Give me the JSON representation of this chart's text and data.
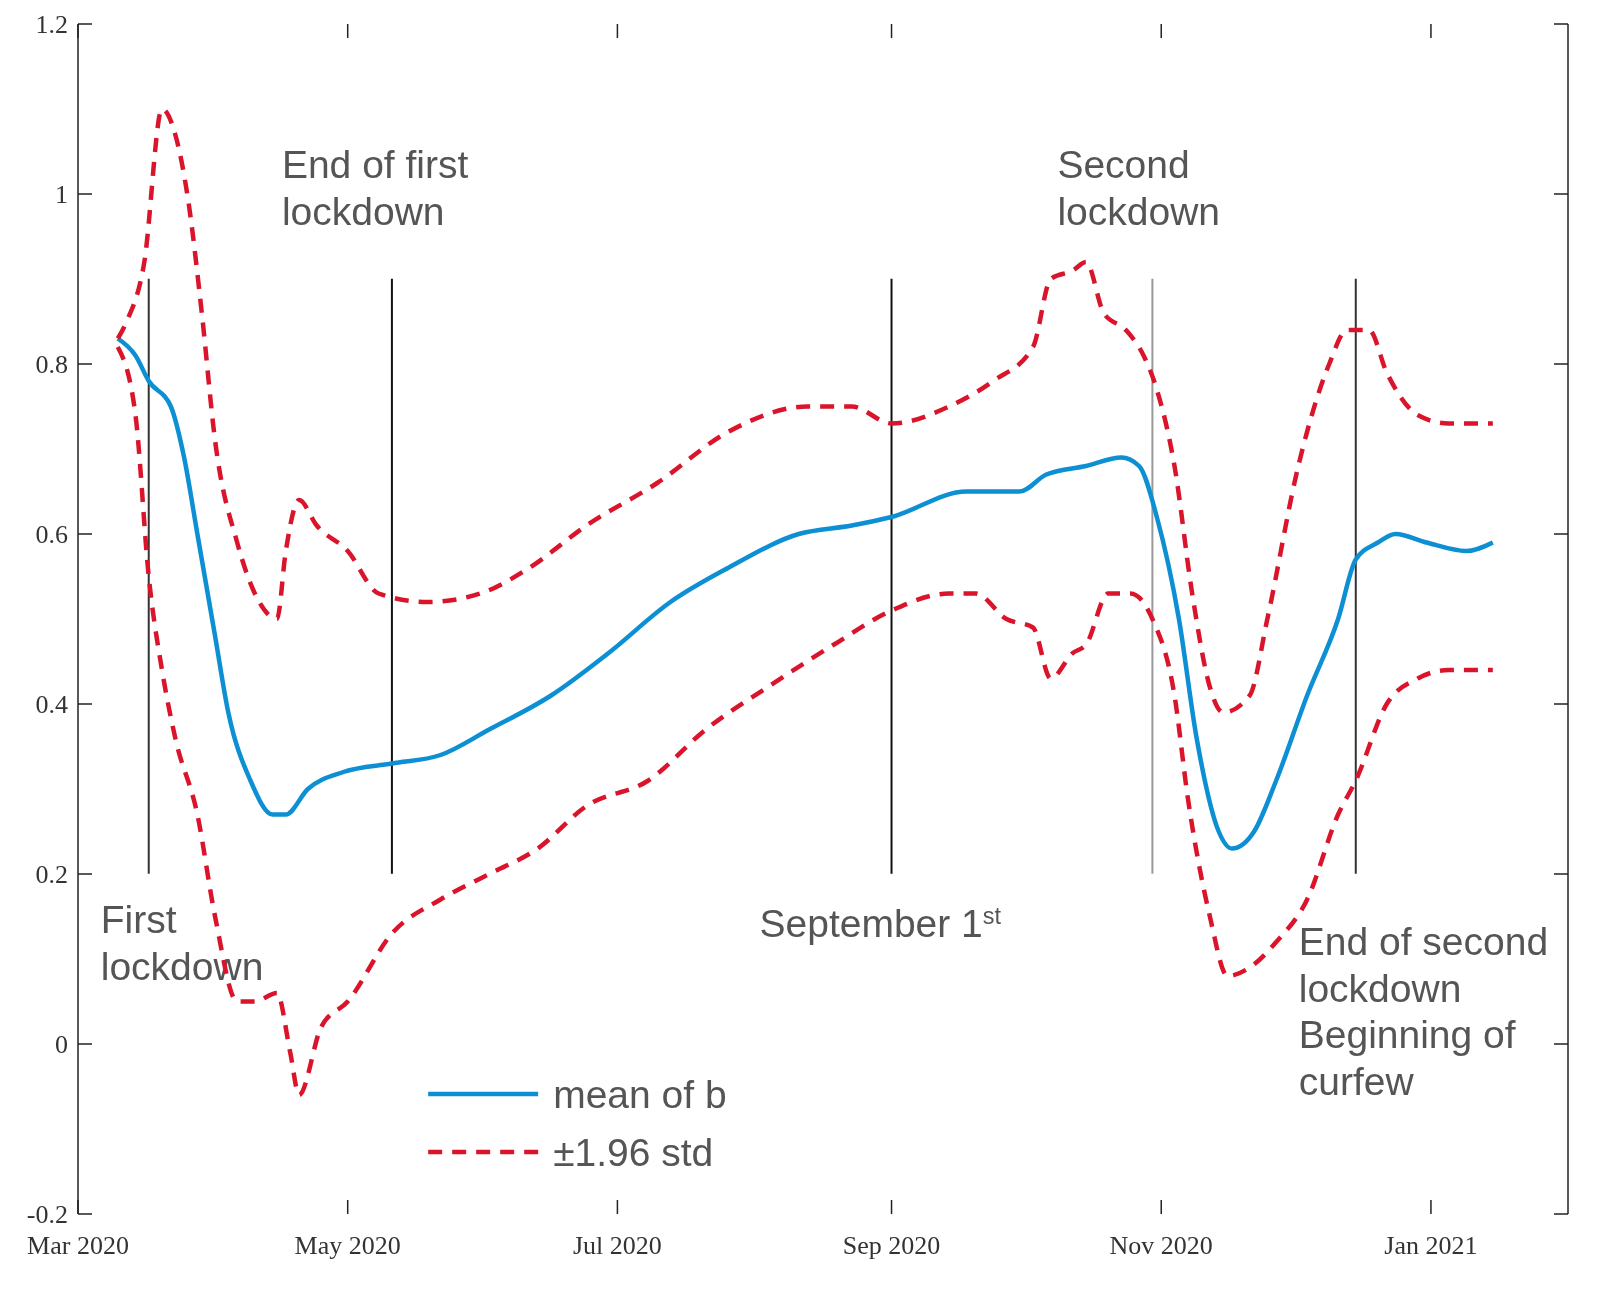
{
  "chart_data": {
    "type": "line",
    "xlim": [
      "2020-03-01",
      "2021-02-01"
    ],
    "xticks": [
      {
        "value": "2020-03-01",
        "label": "Mar 2020"
      },
      {
        "value": "2020-05-01",
        "label": "May 2020"
      },
      {
        "value": "2020-07-01",
        "label": "Jul 2020"
      },
      {
        "value": "2020-09-01",
        "label": "Sep 2020"
      },
      {
        "value": "2020-11-01",
        "label": "Nov 2020"
      },
      {
        "value": "2021-01-01",
        "label": "Jan 2021"
      }
    ],
    "ylim": [
      -0.2,
      1.2
    ],
    "yticks": [
      -0.2,
      0,
      0.2,
      0.4,
      0.6,
      0.8,
      1,
      1.2
    ],
    "grid": false,
    "legend": "bottom",
    "series": [
      {
        "name": "mean of b",
        "color": "#0d8fd4",
        "line_style": "solid",
        "x": [
          "2020-03-10",
          "2020-03-14",
          "2020-03-17",
          "2020-03-22",
          "2020-03-25",
          "2020-03-28",
          "2020-04-01",
          "2020-04-04",
          "2020-04-09",
          "2020-04-14",
          "2020-04-17",
          "2020-04-22",
          "2020-04-30",
          "2020-05-11",
          "2020-05-22",
          "2020-06-02",
          "2020-06-16",
          "2020-06-29",
          "2020-07-13",
          "2020-07-26",
          "2020-08-11",
          "2020-08-23",
          "2020-09-01",
          "2020-09-18",
          "2020-09-30",
          "2020-10-06",
          "2020-10-15",
          "2020-10-23",
          "2020-10-27",
          "2020-10-31",
          "2020-11-05",
          "2020-11-09",
          "2020-11-14",
          "2020-11-17",
          "2020-11-22",
          "2020-11-27",
          "2020-12-04",
          "2020-12-11",
          "2020-12-15",
          "2020-12-20",
          "2020-12-24",
          "2020-12-31",
          "2021-01-09",
          "2021-01-15"
        ],
        "values": [
          0.83,
          0.81,
          0.78,
          0.75,
          0.69,
          0.6,
          0.48,
          0.39,
          0.31,
          0.27,
          0.27,
          0.3,
          0.32,
          0.33,
          0.34,
          0.37,
          0.41,
          0.46,
          0.52,
          0.56,
          0.6,
          0.61,
          0.62,
          0.65,
          0.65,
          0.67,
          0.68,
          0.69,
          0.68,
          0.62,
          0.5,
          0.36,
          0.25,
          0.23,
          0.25,
          0.31,
          0.41,
          0.5,
          0.57,
          0.59,
          0.6,
          0.59,
          0.58,
          0.59
        ]
      },
      {
        "name": "±1.96 std",
        "color": "#d9142b",
        "line_style": "dashed",
        "x": [
          "2020-03-10",
          "2020-03-12",
          "2020-03-16",
          "2020-03-20",
          "2020-03-23",
          "2020-03-26",
          "2020-03-29",
          "2020-04-01",
          "2020-04-06",
          "2020-04-11",
          "2020-04-15",
          "2020-04-17",
          "2020-04-20",
          "2020-04-24",
          "2020-05-01",
          "2020-05-08",
          "2020-05-19",
          "2020-05-31",
          "2020-06-11",
          "2020-06-24",
          "2020-07-10",
          "2020-07-26",
          "2020-08-13",
          "2020-08-23",
          "2020-09-01",
          "2020-09-14",
          "2020-09-24",
          "2020-10-03",
          "2020-10-07",
          "2020-10-12",
          "2020-10-15",
          "2020-10-19",
          "2020-10-24",
          "2020-10-28",
          "2020-10-31",
          "2020-11-04",
          "2020-11-08",
          "2020-11-12",
          "2020-11-15",
          "2020-11-21",
          "2020-11-25",
          "2020-12-02",
          "2020-12-09",
          "2020-12-13",
          "2020-12-18",
          "2020-12-22",
          "2020-12-29",
          "2021-01-05",
          "2021-01-15"
        ],
        "values": [
          0.83,
          0.85,
          0.92,
          1.1,
          1.07,
          0.99,
          0.86,
          0.71,
          0.59,
          0.52,
          0.5,
          0.58,
          0.64,
          0.61,
          0.58,
          0.53,
          0.52,
          0.53,
          0.56,
          0.61,
          0.66,
          0.72,
          0.75,
          0.75,
          0.73,
          0.75,
          0.78,
          0.82,
          0.9,
          0.91,
          0.92,
          0.86,
          0.84,
          0.81,
          0.77,
          0.68,
          0.53,
          0.42,
          0.39,
          0.41,
          0.5,
          0.68,
          0.8,
          0.84,
          0.84,
          0.79,
          0.74,
          0.73,
          0.73
        ]
      },
      {
        "color": "#d9142b",
        "line_style": "dashed",
        "x": [
          "2020-03-10",
          "2020-03-14",
          "2020-03-17",
          "2020-03-20",
          "2020-03-23",
          "2020-03-28",
          "2020-04-01",
          "2020-04-06",
          "2020-04-10",
          "2020-04-15",
          "2020-04-18",
          "2020-04-20",
          "2020-04-25",
          "2020-05-01",
          "2020-05-11",
          "2020-05-22",
          "2020-06-02",
          "2020-06-13",
          "2020-06-24",
          "2020-07-08",
          "2020-07-21",
          "2020-08-04",
          "2020-08-19",
          "2020-09-01",
          "2020-09-14",
          "2020-09-20",
          "2020-09-27",
          "2020-10-03",
          "2020-10-07",
          "2020-10-12",
          "2020-10-15",
          "2020-10-20",
          "2020-10-25",
          "2020-10-30",
          "2020-11-04",
          "2020-11-07",
          "2020-11-12",
          "2020-11-16",
          "2020-11-21",
          "2020-11-27",
          "2020-12-04",
          "2020-12-11",
          "2020-12-15",
          "2020-12-22",
          "2020-12-29",
          "2021-01-05",
          "2021-01-15"
        ],
        "values": [
          0.82,
          0.74,
          0.55,
          0.44,
          0.36,
          0.27,
          0.15,
          0.05,
          0.05,
          0.06,
          -0.01,
          -0.06,
          0.02,
          0.05,
          0.13,
          0.17,
          0.2,
          0.23,
          0.28,
          0.31,
          0.37,
          0.42,
          0.47,
          0.51,
          0.53,
          0.53,
          0.5,
          0.49,
          0.43,
          0.46,
          0.47,
          0.53,
          0.53,
          0.5,
          0.41,
          0.29,
          0.15,
          0.08,
          0.09,
          0.12,
          0.17,
          0.27,
          0.31,
          0.4,
          0.43,
          0.44,
          0.44
        ]
      }
    ],
    "ref_lines": [
      {
        "axis": "x",
        "value": "2020-03-17",
        "color": "#333333",
        "label": "First\nlockdown"
      },
      {
        "axis": "x",
        "value": "2020-05-11",
        "color": "#111111",
        "label": "End of first\nlockdown"
      },
      {
        "axis": "x",
        "value": "2020-09-01",
        "color": "#111111",
        "label": "September 1$^{st}$"
      },
      {
        "axis": "x",
        "value": "2020-10-30",
        "color": "#999999",
        "label": "Second\nlockdown"
      },
      {
        "axis": "x",
        "value": "2020-12-15",
        "color": "#333333",
        "label": "End of second\nlockdown\nBeginning of\ncurfew"
      }
    ]
  }
}
